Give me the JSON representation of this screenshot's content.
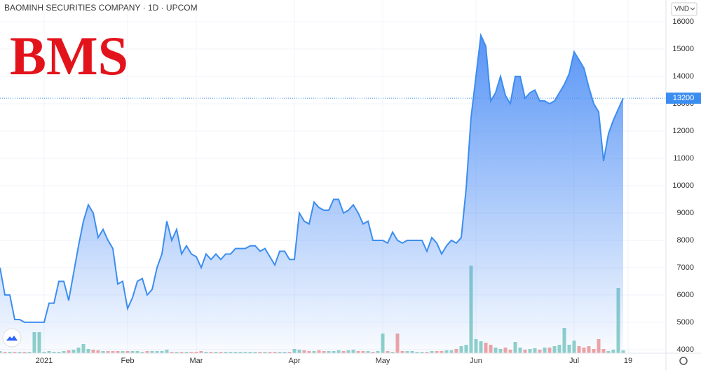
{
  "chart_data": {
    "type": "area",
    "title": "BAOMINH SECURITIES COMPANY · 1D · UPCOM",
    "logo": "BMS",
    "currency": "VND",
    "categories": [
      null,
      null,
      null,
      null,
      null,
      null,
      null,
      null,
      null,
      "2021",
      null,
      null,
      null,
      null,
      null,
      null,
      null,
      null,
      null,
      null,
      null,
      null,
      null,
      null,
      null,
      null,
      "Feb",
      null,
      null,
      null,
      null,
      null,
      null,
      null,
      null,
      null,
      null,
      null,
      null,
      null,
      "Mar",
      null,
      null,
      null,
      null,
      null,
      null,
      null,
      null,
      null,
      null,
      null,
      null,
      null,
      null,
      null,
      null,
      null,
      null,
      null,
      "Apr",
      null,
      null,
      null,
      null,
      null,
      null,
      null,
      null,
      null,
      null,
      null,
      null,
      null,
      null,
      null,
      null,
      null,
      "May",
      null,
      null,
      null,
      null,
      null,
      null,
      null,
      null,
      null,
      null,
      null,
      null,
      null,
      null,
      null,
      null,
      null,
      null,
      "Jun",
      null,
      null,
      null,
      null,
      null,
      null,
      null,
      null,
      null,
      null,
      null,
      null,
      null,
      null,
      null,
      null,
      null,
      null,
      null,
      "Jul",
      null,
      null,
      null,
      null,
      null,
      null,
      null,
      null,
      null,
      null,
      "19"
    ],
    "values": [
      7000,
      6000,
      6000,
      5100,
      5100,
      5000,
      5000,
      5000,
      5000,
      5000,
      5700,
      5700,
      6500,
      6500,
      5800,
      6800,
      7800,
      8700,
      9300,
      9000,
      8100,
      8400,
      8000,
      7700,
      6400,
      6500,
      5500,
      5900,
      6500,
      6600,
      6000,
      6200,
      7000,
      7500,
      8700,
      8000,
      8400,
      7500,
      7800,
      7500,
      7400,
      7000,
      7500,
      7300,
      7500,
      7300,
      7500,
      7500,
      7700,
      7700,
      7700,
      7800,
      7800,
      7600,
      7700,
      7400,
      7100,
      7600,
      7600,
      7300,
      7300,
      9000,
      8700,
      8600,
      9400,
      9200,
      9100,
      9100,
      9500,
      9500,
      9000,
      9100,
      9300,
      9000,
      8600,
      8700,
      8000,
      8000,
      8000,
      7900,
      8300,
      8000,
      7900,
      8000,
      8000,
      8000,
      8000,
      7600,
      8100,
      7900,
      7500,
      7800,
      8000,
      7900,
      8100,
      9900,
      12500,
      14000,
      15500,
      15100,
      13100,
      13400,
      14000,
      13300,
      13000,
      14000,
      14000,
      13200,
      13400,
      13500,
      13100,
      13100,
      13000,
      13100,
      13400,
      13700,
      14100,
      14900,
      14600,
      14300,
      13600,
      13000,
      12700,
      10900,
      11900,
      12400,
      12800,
      13200,
      null
    ],
    "volume": [
      3,
      2,
      2,
      2,
      2,
      2,
      2,
      30,
      30,
      2,
      3,
      2,
      2,
      3,
      4,
      5,
      8,
      13,
      6,
      5,
      4,
      3,
      3,
      3,
      3,
      3,
      3,
      3,
      3,
      2,
      3,
      3,
      3,
      3,
      5,
      2,
      2,
      2,
      2,
      2,
      2,
      3,
      2,
      2,
      2,
      2,
      2,
      2,
      2,
      2,
      2,
      2,
      2,
      2,
      2,
      2,
      2,
      2,
      2,
      2,
      6,
      5,
      4,
      3,
      3,
      4,
      3,
      3,
      3,
      4,
      3,
      4,
      5,
      3,
      3,
      3,
      2,
      3,
      28,
      3,
      2,
      28,
      3,
      3,
      3,
      2,
      2,
      2,
      3,
      3,
      3,
      4,
      4,
      6,
      10,
      12,
      125,
      20,
      17,
      15,
      12,
      8,
      6,
      8,
      5,
      16,
      8,
      5,
      6,
      7,
      5,
      8,
      8,
      10,
      12,
      36,
      12,
      18,
      10,
      8,
      10,
      6,
      20,
      6,
      3,
      5,
      93,
      4,
      null
    ],
    "color": "#3c8df0",
    "volume_up_color": "#8fd1c8",
    "volume_down_color": "#f2a3a3",
    "ylim": [
      3870,
      16230
    ],
    "y2lim": [
      0,
      482
    ],
    "yticks": [
      4000,
      5000,
      6000,
      7000,
      8000,
      9000,
      10000,
      11000,
      12000,
      13000,
      14000,
      15000,
      16000
    ],
    "grid": true
  }
}
